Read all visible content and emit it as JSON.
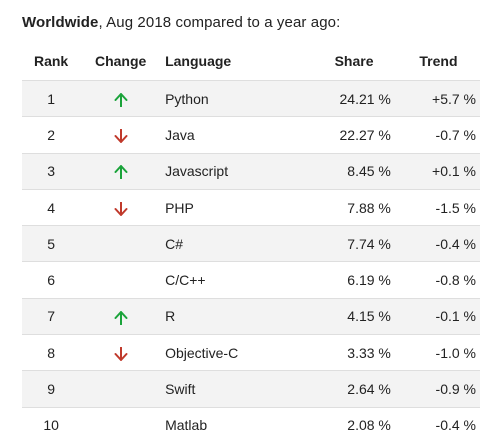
{
  "heading": {
    "bold": "Worldwide",
    "rest": ", Aug 2018 compared to a year ago:"
  },
  "columns": {
    "rank": "Rank",
    "change": "Change",
    "language": "Language",
    "share": "Share",
    "trend": "Trend"
  },
  "colors": {
    "up": "#1aa33a",
    "down": "#c0392b",
    "row_stripe": "#f3f3f3",
    "divider": "#dedede"
  },
  "rows": [
    {
      "rank": "1",
      "change": "up",
      "language": "Python",
      "share": "24.21 %",
      "trend": "+5.7 %"
    },
    {
      "rank": "2",
      "change": "down",
      "language": "Java",
      "share": "22.27 %",
      "trend": "-0.7 %"
    },
    {
      "rank": "3",
      "change": "up",
      "language": "Javascript",
      "share": "8.45 %",
      "trend": "+0.1 %"
    },
    {
      "rank": "4",
      "change": "down",
      "language": "PHP",
      "share": "7.88 %",
      "trend": "-1.5 %"
    },
    {
      "rank": "5",
      "change": "none",
      "language": "C#",
      "share": "7.74 %",
      "trend": "-0.4 %"
    },
    {
      "rank": "6",
      "change": "none",
      "language": "C/C++",
      "share": "6.19 %",
      "trend": "-0.8 %"
    },
    {
      "rank": "7",
      "change": "up",
      "language": "R",
      "share": "4.15 %",
      "trend": "-0.1 %"
    },
    {
      "rank": "8",
      "change": "down",
      "language": "Objective-C",
      "share": "3.33 %",
      "trend": "-1.0 %"
    },
    {
      "rank": "9",
      "change": "none",
      "language": "Swift",
      "share": "2.64 %",
      "trend": "-0.9 %"
    },
    {
      "rank": "10",
      "change": "none",
      "language": "Matlab",
      "share": "2.08 %",
      "trend": "-0.4 %"
    }
  ]
}
